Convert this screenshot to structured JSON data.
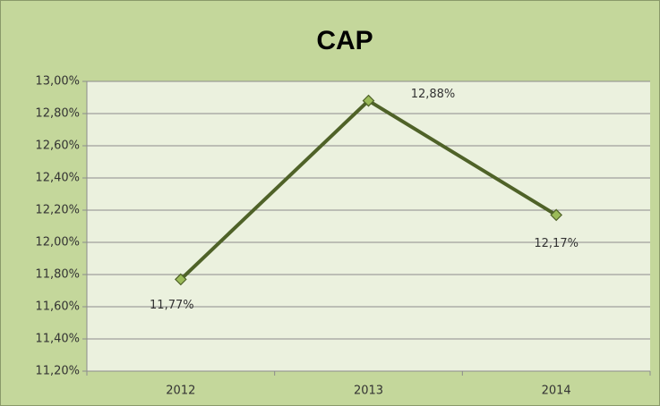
{
  "chart_data": {
    "type": "line",
    "title": "CAP",
    "categories": [
      "2012",
      "2013",
      "2014"
    ],
    "series": [
      {
        "name": "CAP",
        "color": "#4f6228",
        "marker_color": "#9bbb59",
        "values": [
          11.77,
          12.88,
          12.17
        ],
        "value_labels": [
          "11,77%",
          "12,88%",
          "12,17%"
        ]
      }
    ],
    "ylim": [
      11.2,
      13.0
    ],
    "yticks": [
      {
        "value": 11.2,
        "label": "11,20%"
      },
      {
        "value": 11.4,
        "label": "11,40%"
      },
      {
        "value": 11.6,
        "label": "11,60%"
      },
      {
        "value": 11.8,
        "label": "11,80%"
      },
      {
        "value": 12.0,
        "label": "12,00%"
      },
      {
        "value": 12.2,
        "label": "12,20%"
      },
      {
        "value": 12.4,
        "label": "12,40%"
      },
      {
        "value": 12.6,
        "label": "12,60%"
      },
      {
        "value": 12.8,
        "label": "12,80%"
      },
      {
        "value": 13.0,
        "label": "13,00%"
      }
    ],
    "grid": true,
    "legend": false
  }
}
